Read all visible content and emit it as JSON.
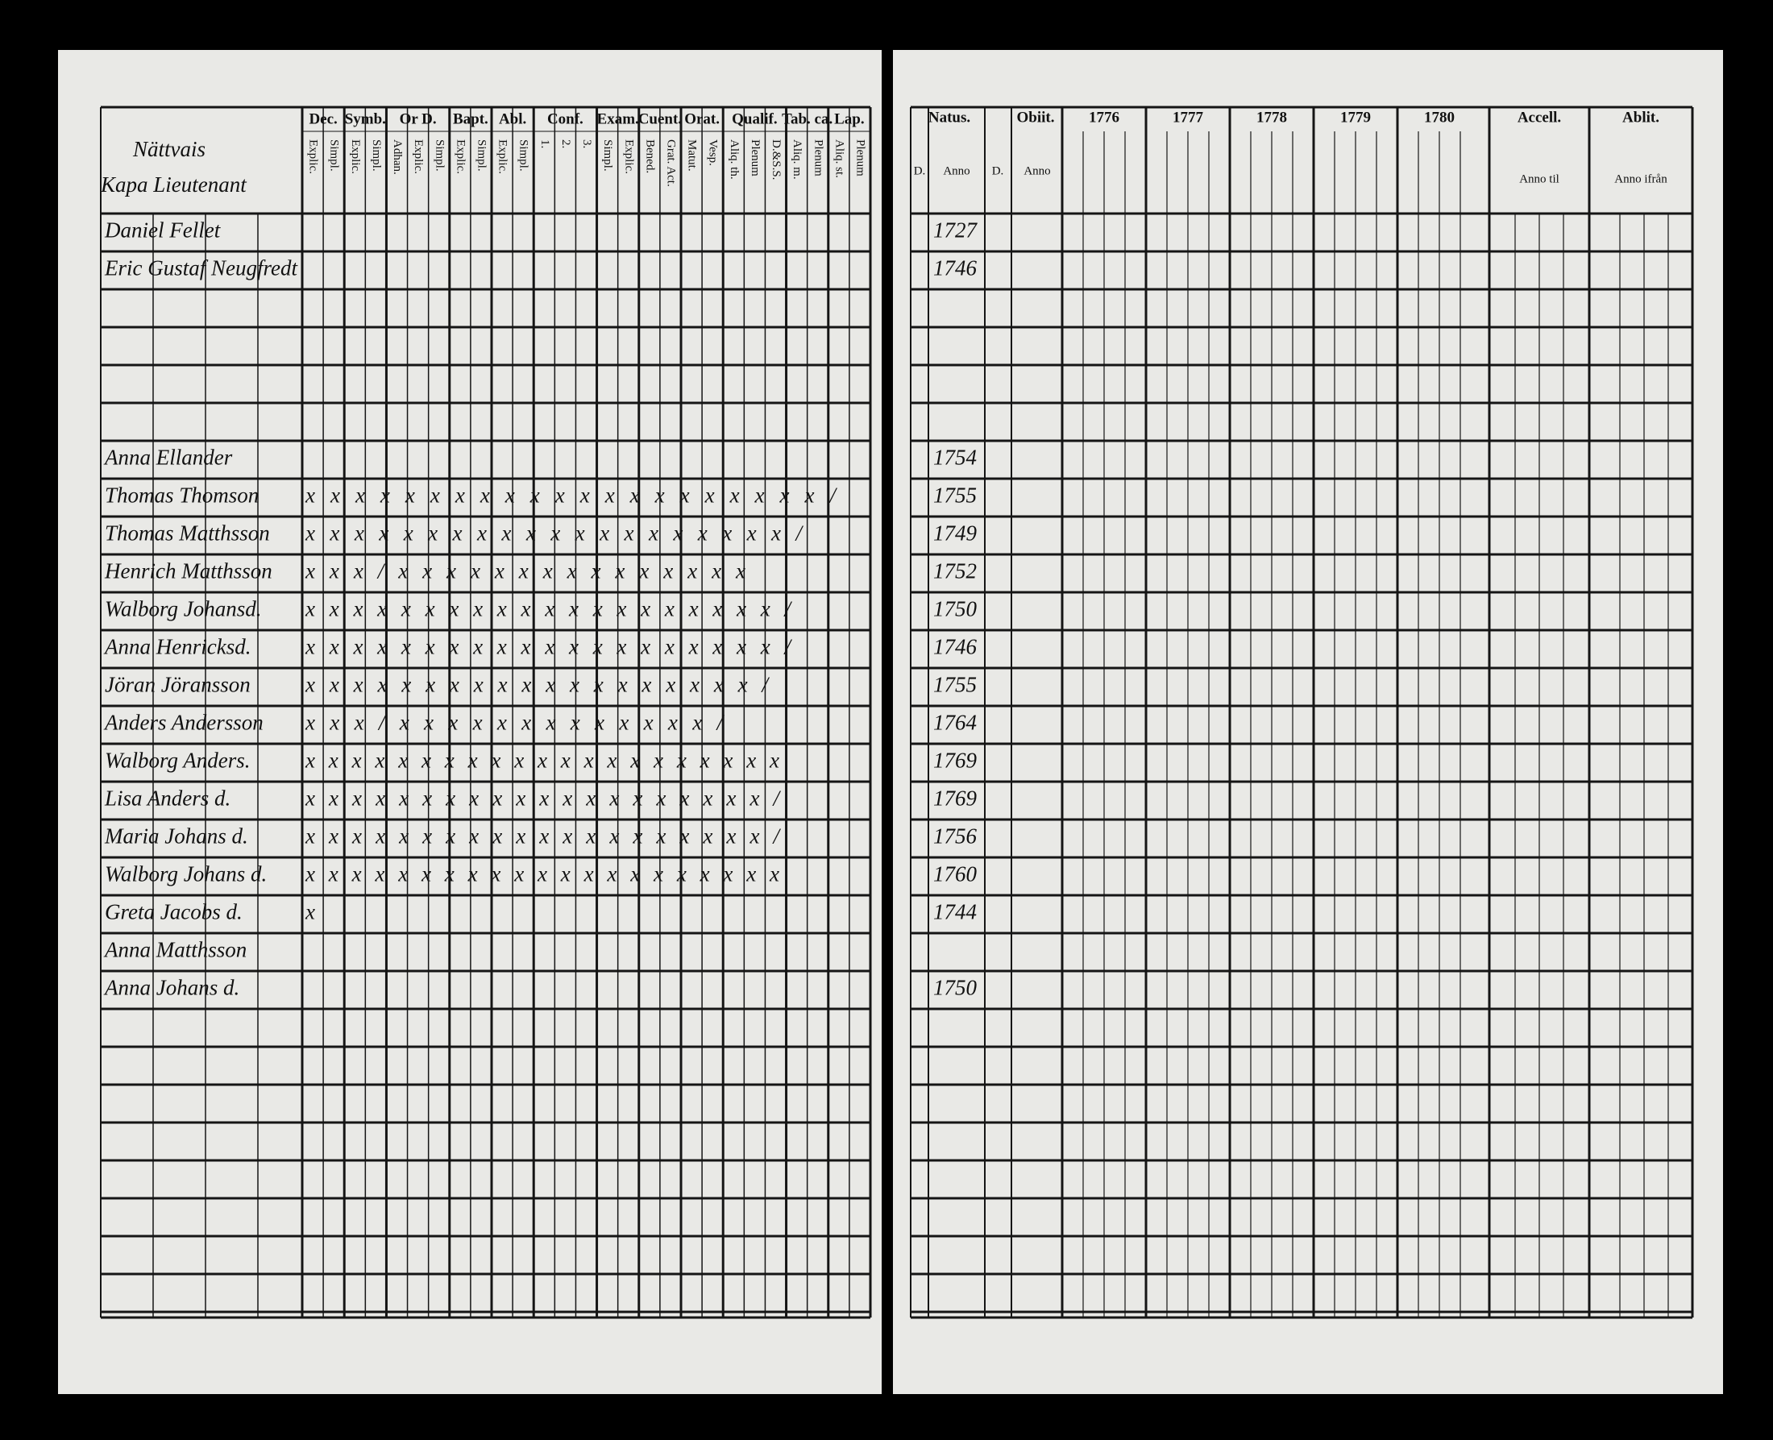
{
  "left_page": {
    "title_lines": [
      "Nättvais",
      "Kapa Lieutenant"
    ],
    "column_groups": [
      {
        "label": "Dec.",
        "subs": [
          "Explic.",
          "Simpl."
        ]
      },
      {
        "label": "Symb.",
        "subs": [
          "Explic.",
          "Simpl."
        ]
      },
      {
        "label": "Or D.",
        "subs": [
          "Adhan.",
          "Explic.",
          "Simpl."
        ]
      },
      {
        "label": "Bapt.",
        "subs": [
          "Explic.",
          "Simpl."
        ]
      },
      {
        "label": "Abl.",
        "subs": [
          "Explic.",
          "Simpl."
        ]
      },
      {
        "label": "Conf.",
        "subs": [
          "1.",
          "2.",
          "3."
        ]
      },
      {
        "label": "Exam.",
        "subs": [
          "Simpl.",
          "Explic."
        ]
      },
      {
        "label": "Cuent.",
        "subs": [
          "Bened.",
          "Grat. Act."
        ]
      },
      {
        "label": "Orat.",
        "subs": [
          "Matut.",
          "Vesp."
        ]
      },
      {
        "label": "Qualif.",
        "subs": [
          "Aliq. th.",
          "Plenum",
          "D.&S.S."
        ]
      },
      {
        "label": "Tab. ca.",
        "subs": [
          "Aliq. m.",
          "Plenum"
        ]
      },
      {
        "label": "Lap.",
        "subs": [
          "Aliq. st.",
          "Plenum"
        ]
      }
    ]
  },
  "right_page": {
    "natus": "Natus.",
    "obiit": "Obiit.",
    "day": "D.",
    "anno": "Anno",
    "years": [
      1776,
      1777,
      1778,
      1779,
      1780
    ],
    "accell": "Accell.",
    "ablit": "Ablit.",
    "anno_til": "Anno til",
    "anno_ifran": "Anno ifrån"
  },
  "persons": [
    {
      "name": "Daniel Fellet",
      "marks": null,
      "born": 1727
    },
    {
      "name": "Eric Gustaf Neugfredt",
      "marks": null,
      "born": 1746
    },
    {
      "name": "Anna Ellander",
      "marks": null,
      "born": 1754
    },
    {
      "name": "Thomas Thomson",
      "marks": "x x x x  x x x  x x x x  x x x x  x x x x x x /",
      "born": 1755
    },
    {
      "name": "Thomas Matthsson",
      "marks": "x x x x  x x x x x x x x  x x x x  x x x x /",
      "born": 1749
    },
    {
      "name": "Henrich Matthsson",
      "marks": "x x x /  x x x x x x x x  x x x x x x x",
      "born": 1752
    },
    {
      "name": "Walborg Johansd.",
      "marks": "x x x x  x x x x x x x x  x x x x x x x x /",
      "born": 1750
    },
    {
      "name": "Anna Henricksd.",
      "marks": "x x x x  x x x x x x x x  x x x x x x x x /",
      "born": 1746
    },
    {
      "name": "Jöran Jöransson",
      "marks": "x x x x  x x x x x x x x  x x x x x x x /",
      "born": 1755
    },
    {
      "name": "Anders Andersson",
      "marks": "x x x /  x x x x x  x x x x x x x x /",
      "born": 1764
    },
    {
      "name": "Walborg Anders.",
      "marks": "x x x x  x x x x x x x x x x x x x x x x x",
      "born": 1769
    },
    {
      "name": "Lisa Anders d.",
      "marks": "x x x x x  x x x x x x x x x x x x x x x /",
      "born": 1769
    },
    {
      "name": "Maria Johans d.",
      "marks": "x x x x  x x x x x x x x x x x x x x x x /",
      "born": 1756
    },
    {
      "name": "Walborg Johans d.",
      "marks": "x x x x  x x x x x x x x x x x x x x x x x",
      "born": 1760
    },
    {
      "name": "Greta Jacobs d.",
      "marks": "x",
      "born": 1744
    },
    {
      "name": "Anna Matthsson",
      "marks": null,
      "born": null
    },
    {
      "name": "Anna Johans d.",
      "marks": null,
      "born": 1750
    }
  ]
}
